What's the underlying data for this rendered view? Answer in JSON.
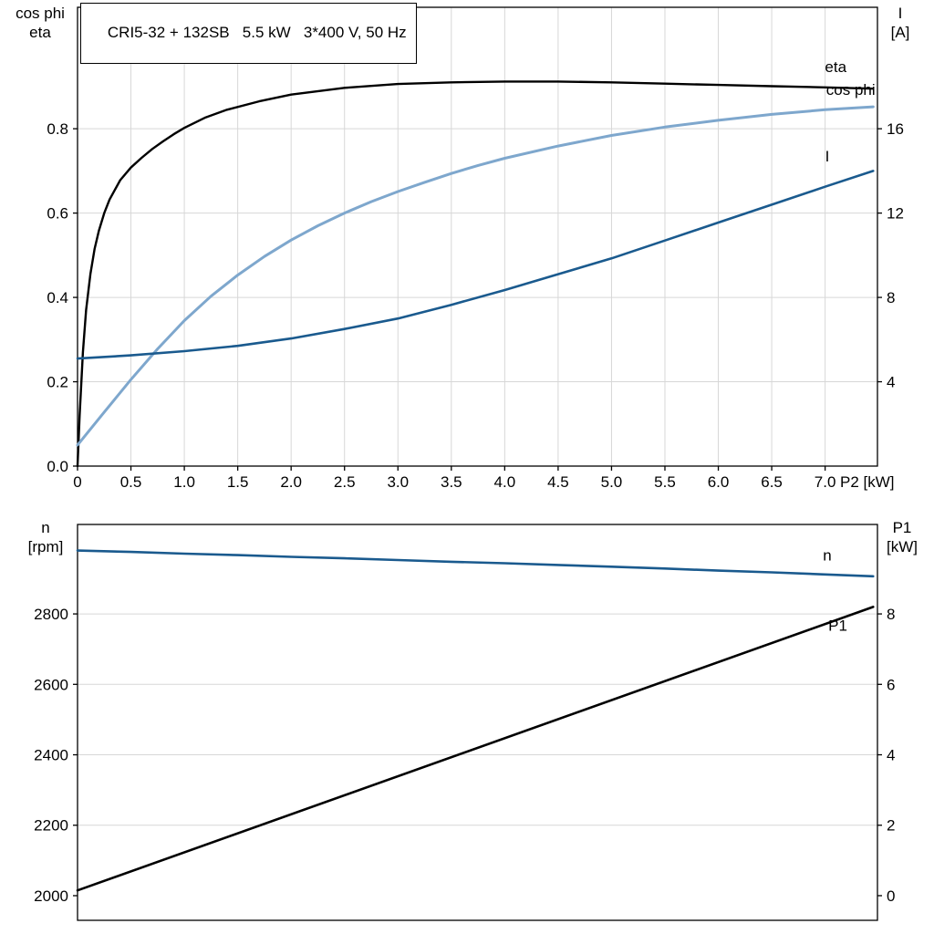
{
  "header": {
    "title": "CRI5-32 + 132SB   5.5 kW   3*400 V, 50 Hz"
  },
  "colors": {
    "black": "#000000",
    "light_blue": "#7ea7cd",
    "dark_blue": "#1a5a8e",
    "grid": "#d7d7d7",
    "axis": "#000000"
  },
  "axis_titles": {
    "top_left": [
      "cos phi",
      "eta"
    ],
    "top_right": [
      "I",
      "[A]"
    ],
    "bottom_left": [
      "n",
      "[rpm]"
    ],
    "bottom_right": [
      "P1",
      "[kW]"
    ]
  },
  "chart_data": [
    {
      "name": "motor-efficiency-chart",
      "type": "line",
      "x_label": "P2 [kW]",
      "x_range": [
        0,
        7.49
      ],
      "x_ticks": {
        "values": [
          0,
          0.5,
          1,
          1.5,
          2,
          2.5,
          3,
          3.5,
          4,
          4.5,
          5,
          5.5,
          6,
          6.5,
          7
        ],
        "labels": [
          "0",
          "0.5",
          "1.0",
          "1.5",
          "2.0",
          "2.5",
          "3.0",
          "3.5",
          "4.0",
          "4.5",
          "5.0",
          "5.5",
          "6.0",
          "6.5",
          "7.0"
        ]
      },
      "x_grid": [
        0.5,
        1,
        1.5,
        2,
        2.5,
        3,
        3.5,
        4,
        4.5,
        5,
        5.5,
        6,
        6.5,
        7
      ],
      "left_range": [
        0,
        1.088
      ],
      "left_ticks": {
        "values": [
          0,
          0.2,
          0.4,
          0.6,
          0.8
        ],
        "labels": [
          "0.0",
          "0.2",
          "0.4",
          "0.6",
          "0.8"
        ]
      },
      "left_grid": [
        0.2,
        0.4,
        0.6,
        0.8
      ],
      "right_range": [
        0,
        21.76
      ],
      "right_ticks": {
        "values": [
          4,
          8,
          12,
          16
        ],
        "labels": [
          "4",
          "8",
          "12",
          "16"
        ]
      },
      "series": [
        {
          "name": "eta",
          "axis": "left",
          "color": "#000000",
          "width": 2.4,
          "label": {
            "text": "eta",
            "x": 7.2,
            "y": 0.934,
            "anchor": "end"
          },
          "points": [
            [
              0,
              0
            ],
            [
              0.02,
              0.12
            ],
            [
              0.05,
              0.27
            ],
            [
              0.08,
              0.37
            ],
            [
              0.12,
              0.455
            ],
            [
              0.16,
              0.515
            ],
            [
              0.2,
              0.558
            ],
            [
              0.25,
              0.6
            ],
            [
              0.3,
              0.632
            ],
            [
              0.4,
              0.678
            ],
            [
              0.5,
              0.708
            ],
            [
              0.6,
              0.731
            ],
            [
              0.7,
              0.752
            ],
            [
              0.8,
              0.77
            ],
            [
              0.9,
              0.787
            ],
            [
              1,
              0.802
            ],
            [
              1.2,
              0.827
            ],
            [
              1.4,
              0.845
            ],
            [
              1.7,
              0.865
            ],
            [
              2,
              0.881
            ],
            [
              2.5,
              0.897
            ],
            [
              3,
              0.906
            ],
            [
              3.5,
              0.91
            ],
            [
              4,
              0.912
            ],
            [
              4.5,
              0.912
            ],
            [
              5,
              0.91
            ],
            [
              5.5,
              0.907
            ],
            [
              6,
              0.904
            ],
            [
              6.5,
              0.901
            ],
            [
              7,
              0.898
            ],
            [
              7.45,
              0.895
            ]
          ]
        },
        {
          "name": "cos-phi",
          "axis": "left",
          "color": "#7ea7cd",
          "width": 3,
          "label": {
            "text": "cos phi",
            "x": 7.47,
            "y": 0.88,
            "anchor": "end"
          },
          "points": [
            [
              0,
              0.05
            ],
            [
              0.25,
              0.128
            ],
            [
              0.5,
              0.205
            ],
            [
              0.75,
              0.278
            ],
            [
              1,
              0.345
            ],
            [
              1.25,
              0.403
            ],
            [
              1.5,
              0.453
            ],
            [
              1.75,
              0.497
            ],
            [
              2,
              0.536
            ],
            [
              2.25,
              0.57
            ],
            [
              2.5,
              0.6
            ],
            [
              2.75,
              0.627
            ],
            [
              3,
              0.651
            ],
            [
              3.25,
              0.673
            ],
            [
              3.5,
              0.694
            ],
            [
              3.75,
              0.713
            ],
            [
              4,
              0.73
            ],
            [
              4.5,
              0.759
            ],
            [
              5,
              0.784
            ],
            [
              5.5,
              0.804
            ],
            [
              6,
              0.82
            ],
            [
              6.5,
              0.834
            ],
            [
              7,
              0.845
            ],
            [
              7.45,
              0.852
            ]
          ]
        },
        {
          "name": "current-I",
          "axis": "right",
          "color": "#1a5a8e",
          "width": 2.6,
          "label": {
            "text": "I",
            "x": 7.0,
            "y": 14.45,
            "anchor": "start"
          },
          "points": [
            [
              0,
              5.1
            ],
            [
              0.5,
              5.25
            ],
            [
              1,
              5.45
            ],
            [
              1.5,
              5.7
            ],
            [
              2,
              6.05
            ],
            [
              2.5,
              6.5
            ],
            [
              3,
              7.0
            ],
            [
              3.5,
              7.65
            ],
            [
              4,
              8.35
            ],
            [
              4.5,
              9.1
            ],
            [
              5,
              9.85
            ],
            [
              5.5,
              10.7
            ],
            [
              6,
              11.55
            ],
            [
              6.5,
              12.4
            ],
            [
              7,
              13.25
            ],
            [
              7.45,
              14.0
            ]
          ]
        }
      ]
    },
    {
      "name": "motor-speed-power-chart",
      "type": "line",
      "x_label": "",
      "x_range": [
        0,
        7.49
      ],
      "x_ticks": {
        "values": [],
        "labels": []
      },
      "x_grid": [],
      "left_range": [
        1930,
        3054
      ],
      "left_ticks": {
        "values": [
          2000,
          2200,
          2400,
          2600,
          2800
        ],
        "labels": [
          "2000",
          "2200",
          "2400",
          "2600",
          "2800"
        ]
      },
      "left_grid": [
        2200,
        2400,
        2600,
        2800
      ],
      "right_range": [
        -0.7,
        10.54
      ],
      "right_ticks": {
        "values": [
          0,
          2,
          4,
          6,
          8
        ],
        "labels": [
          "0",
          "2",
          "4",
          "6",
          "8"
        ]
      },
      "series": [
        {
          "name": "speed-n",
          "axis": "left",
          "color": "#1a5a8e",
          "width": 2.6,
          "label": {
            "text": "n",
            "x": 6.98,
            "y": 2952,
            "anchor": "start"
          },
          "points": [
            [
              0,
              2980
            ],
            [
              0.5,
              2976
            ],
            [
              1,
              2971
            ],
            [
              1.5,
              2967
            ],
            [
              2,
              2962
            ],
            [
              2.5,
              2958
            ],
            [
              3,
              2953
            ],
            [
              3.5,
              2948
            ],
            [
              4,
              2944
            ],
            [
              4.5,
              2939
            ],
            [
              5,
              2934
            ],
            [
              5.5,
              2929
            ],
            [
              6,
              2923
            ],
            [
              6.5,
              2918
            ],
            [
              7,
              2912
            ],
            [
              7.45,
              2907
            ]
          ]
        },
        {
          "name": "power-P1",
          "axis": "right",
          "color": "#000000",
          "width": 2.6,
          "label": {
            "text": "P1",
            "x": 7.03,
            "y": 7.52,
            "anchor": "start"
          },
          "points": [
            [
              0,
              0.15
            ],
            [
              7.45,
              8.2
            ]
          ]
        }
      ]
    }
  ]
}
